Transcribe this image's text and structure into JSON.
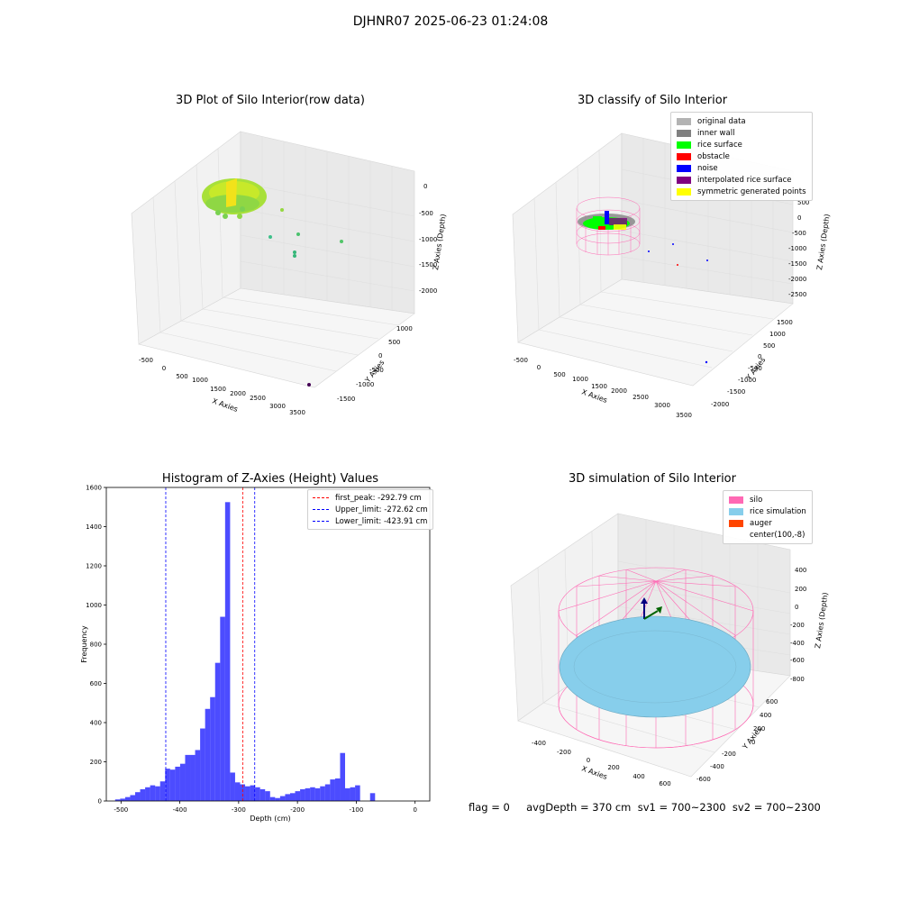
{
  "suptitle": "DJHNR07 2025-06-23 01:24:08",
  "footer": "flag = 0     avgDepth = 370 cm  sv1 = 700~2300  sv2 = 700~2300",
  "chart_data": [
    {
      "type": "scatter",
      "projection": "3d",
      "title": "3D Plot of Silo Interior(row data)",
      "xlabel": "X Axies",
      "ylabel": "Y Axies",
      "zlabel": "Z Axies (Depth)",
      "xticks": [
        "-500",
        "0",
        "500",
        "1000",
        "1500",
        "2000",
        "2500",
        "3000",
        "3500"
      ],
      "yticks": [
        "-1500",
        "-1000",
        "-500",
        "0",
        "500",
        "1000"
      ],
      "zticks": [
        "0",
        "-500",
        "-1000",
        "-1500",
        "-2000"
      ],
      "legend": false
    },
    {
      "type": "scatter",
      "projection": "3d",
      "title": "3D classify of Silo Interior",
      "xlabel": "X Axies",
      "ylabel": "Y Axies",
      "zlabel": "Z Axies (Depth)",
      "xticks": [
        "-500",
        "0",
        "500",
        "1000",
        "1500",
        "2000",
        "2500",
        "3000",
        "3500"
      ],
      "yticks": [
        "-2000",
        "-1500",
        "-1000",
        "-500",
        "0",
        "500",
        "1000",
        "1500"
      ],
      "zticks": [
        "500",
        "0",
        "-500",
        "-1000",
        "-1500",
        "-2000",
        "-2500"
      ],
      "legend_position": "top-right",
      "legend": [
        {
          "label": "original data",
          "color": "#b3b3b3"
        },
        {
          "label": "inner wall",
          "color": "#808080"
        },
        {
          "label": "rice surface",
          "color": "#00ff00"
        },
        {
          "label": "obstacle",
          "color": "#ff0000"
        },
        {
          "label": "noise",
          "color": "#0000ff"
        },
        {
          "label": "interpolated rice surface",
          "color": "#800080"
        },
        {
          "label": "symmetric generated points",
          "color": "#ffff00"
        }
      ]
    },
    {
      "type": "bar",
      "title": "Histogram of Z-Axies (Height) Values",
      "xlabel": "Depth (cm)",
      "ylabel": "Frequency",
      "xlim": [
        -525,
        25
      ],
      "ylim": [
        0,
        1600
      ],
      "xticks": [
        -500,
        -400,
        -300,
        -200,
        -100,
        0
      ],
      "yticks": [
        0,
        200,
        400,
        600,
        800,
        1000,
        1200,
        1400,
        1600
      ],
      "bin_width": 8.5,
      "bar_color": "#0000ff",
      "bins": [
        {
          "x": -510,
          "y": 8
        },
        {
          "x": -501.5,
          "y": 12
        },
        {
          "x": -493,
          "y": 20
        },
        {
          "x": -484.5,
          "y": 30
        },
        {
          "x": -476,
          "y": 45
        },
        {
          "x": -467.5,
          "y": 60
        },
        {
          "x": -459,
          "y": 70
        },
        {
          "x": -450.5,
          "y": 80
        },
        {
          "x": -442,
          "y": 75
        },
        {
          "x": -433.5,
          "y": 100
        },
        {
          "x": -425,
          "y": 165
        },
        {
          "x": -416.5,
          "y": 160
        },
        {
          "x": -408,
          "y": 175
        },
        {
          "x": -399.5,
          "y": 190
        },
        {
          "x": -391,
          "y": 235
        },
        {
          "x": -382.5,
          "y": 235
        },
        {
          "x": -374,
          "y": 260
        },
        {
          "x": -365.5,
          "y": 370
        },
        {
          "x": -357,
          "y": 470
        },
        {
          "x": -348.5,
          "y": 530
        },
        {
          "x": -340,
          "y": 705
        },
        {
          "x": -331.5,
          "y": 940
        },
        {
          "x": -323,
          "y": 1525
        },
        {
          "x": -314.5,
          "y": 145
        },
        {
          "x": -306,
          "y": 95
        },
        {
          "x": -297.5,
          "y": 85
        },
        {
          "x": -289,
          "y": 75
        },
        {
          "x": -280.5,
          "y": 80
        },
        {
          "x": -272,
          "y": 70
        },
        {
          "x": -263.5,
          "y": 60
        },
        {
          "x": -255,
          "y": 50
        },
        {
          "x": -246.5,
          "y": 20
        },
        {
          "x": -238,
          "y": 15
        },
        {
          "x": -229.5,
          "y": 25
        },
        {
          "x": -221,
          "y": 35
        },
        {
          "x": -212.5,
          "y": 40
        },
        {
          "x": -204,
          "y": 50
        },
        {
          "x": -195.5,
          "y": 60
        },
        {
          "x": -187,
          "y": 65
        },
        {
          "x": -178.5,
          "y": 70
        },
        {
          "x": -170,
          "y": 65
        },
        {
          "x": -161.5,
          "y": 75
        },
        {
          "x": -153,
          "y": 85
        },
        {
          "x": -144.5,
          "y": 110
        },
        {
          "x": -136,
          "y": 115
        },
        {
          "x": -127.5,
          "y": 245
        },
        {
          "x": -119,
          "y": 65
        },
        {
          "x": -110.5,
          "y": 70
        },
        {
          "x": -102,
          "y": 80
        },
        {
          "x": -93.5,
          "y": 0
        },
        {
          "x": -85,
          "y": 0
        },
        {
          "x": -76.5,
          "y": 40
        }
      ],
      "vlines": [
        {
          "x": -292.79,
          "label": "first_peak: -292.79 cm",
          "color": "#ff0000"
        },
        {
          "x": -272.62,
          "label": "Upper_limit: -272.62 cm",
          "color": "#0000ff"
        },
        {
          "x": -423.91,
          "label": "Lower_limit: -423.91 cm",
          "color": "#0000ff"
        }
      ],
      "legend_position": "top-right"
    },
    {
      "type": "surface",
      "projection": "3d",
      "title": "3D simulation of Silo Interior",
      "xlabel": "X Axies",
      "ylabel": "Y Axies",
      "zlabel": "Z Axies (Depth)",
      "xticks": [
        "-400",
        "-200",
        "0",
        "200",
        "400",
        "600"
      ],
      "yticks": [
        "-600",
        "-400",
        "-200",
        "0",
        "200",
        "400",
        "600"
      ],
      "zticks": [
        "400",
        "200",
        "0",
        "-200",
        "-400",
        "-600",
        "-800"
      ],
      "legend_position": "top-right",
      "legend": [
        {
          "label": "silo",
          "color": "#ff69b4"
        },
        {
          "label": "rice simulation",
          "color": "#87ceeb"
        },
        {
          "label": "auger",
          "color": "#ff4500"
        },
        {
          "label": "center(100,-8)",
          "color": ""
        }
      ]
    }
  ]
}
